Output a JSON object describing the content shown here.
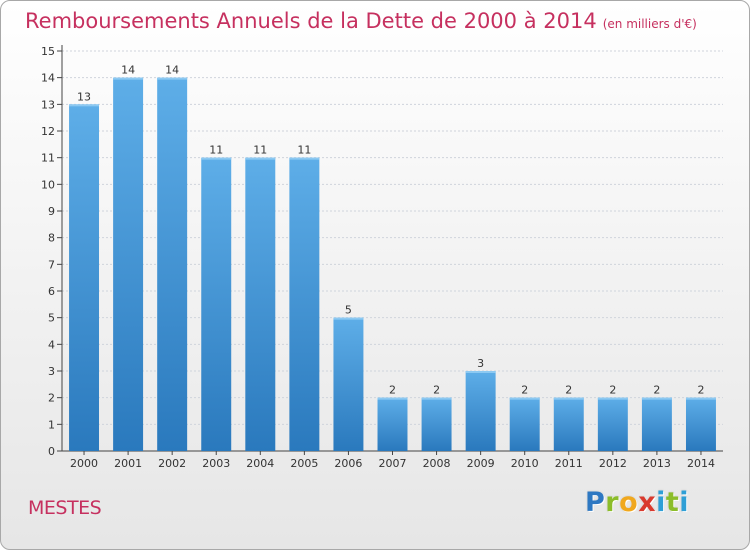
{
  "chart_data": {
    "type": "bar",
    "title": "Remboursements Annuels de la Dette de 2000 à 2014",
    "subtitle": "(en milliers d'€)",
    "categories": [
      "2000",
      "2001",
      "2002",
      "2003",
      "2004",
      "2005",
      "2006",
      "2007",
      "2008",
      "2009",
      "2010",
      "2011",
      "2012",
      "2013",
      "2014"
    ],
    "values": [
      13,
      14,
      14,
      11,
      11,
      11,
      5,
      2,
      2,
      3,
      2,
      2,
      2,
      2,
      2
    ],
    "ylim": [
      0,
      15
    ],
    "yticks": [
      0,
      1,
      2,
      3,
      4,
      5,
      6,
      7,
      8,
      9,
      10,
      11,
      12,
      13,
      14,
      15
    ],
    "grid": true,
    "colors": {
      "bar_top": "#5eaee8",
      "bar_bottom": "#2a79bd",
      "grid": "#cfd4dc",
      "axis": "#444444",
      "text": "#333333",
      "accent": "#c6305f"
    }
  },
  "place_name": "MESTES",
  "brand": {
    "letters": [
      "P",
      "r",
      "o",
      "x",
      "i",
      "t",
      "i"
    ],
    "colors": [
      "#2e78c2",
      "#8cbd2a",
      "#f0a81e",
      "#d93a2e",
      "#2e9fd6",
      "#8cbd2a",
      "#2e9fd6"
    ]
  }
}
